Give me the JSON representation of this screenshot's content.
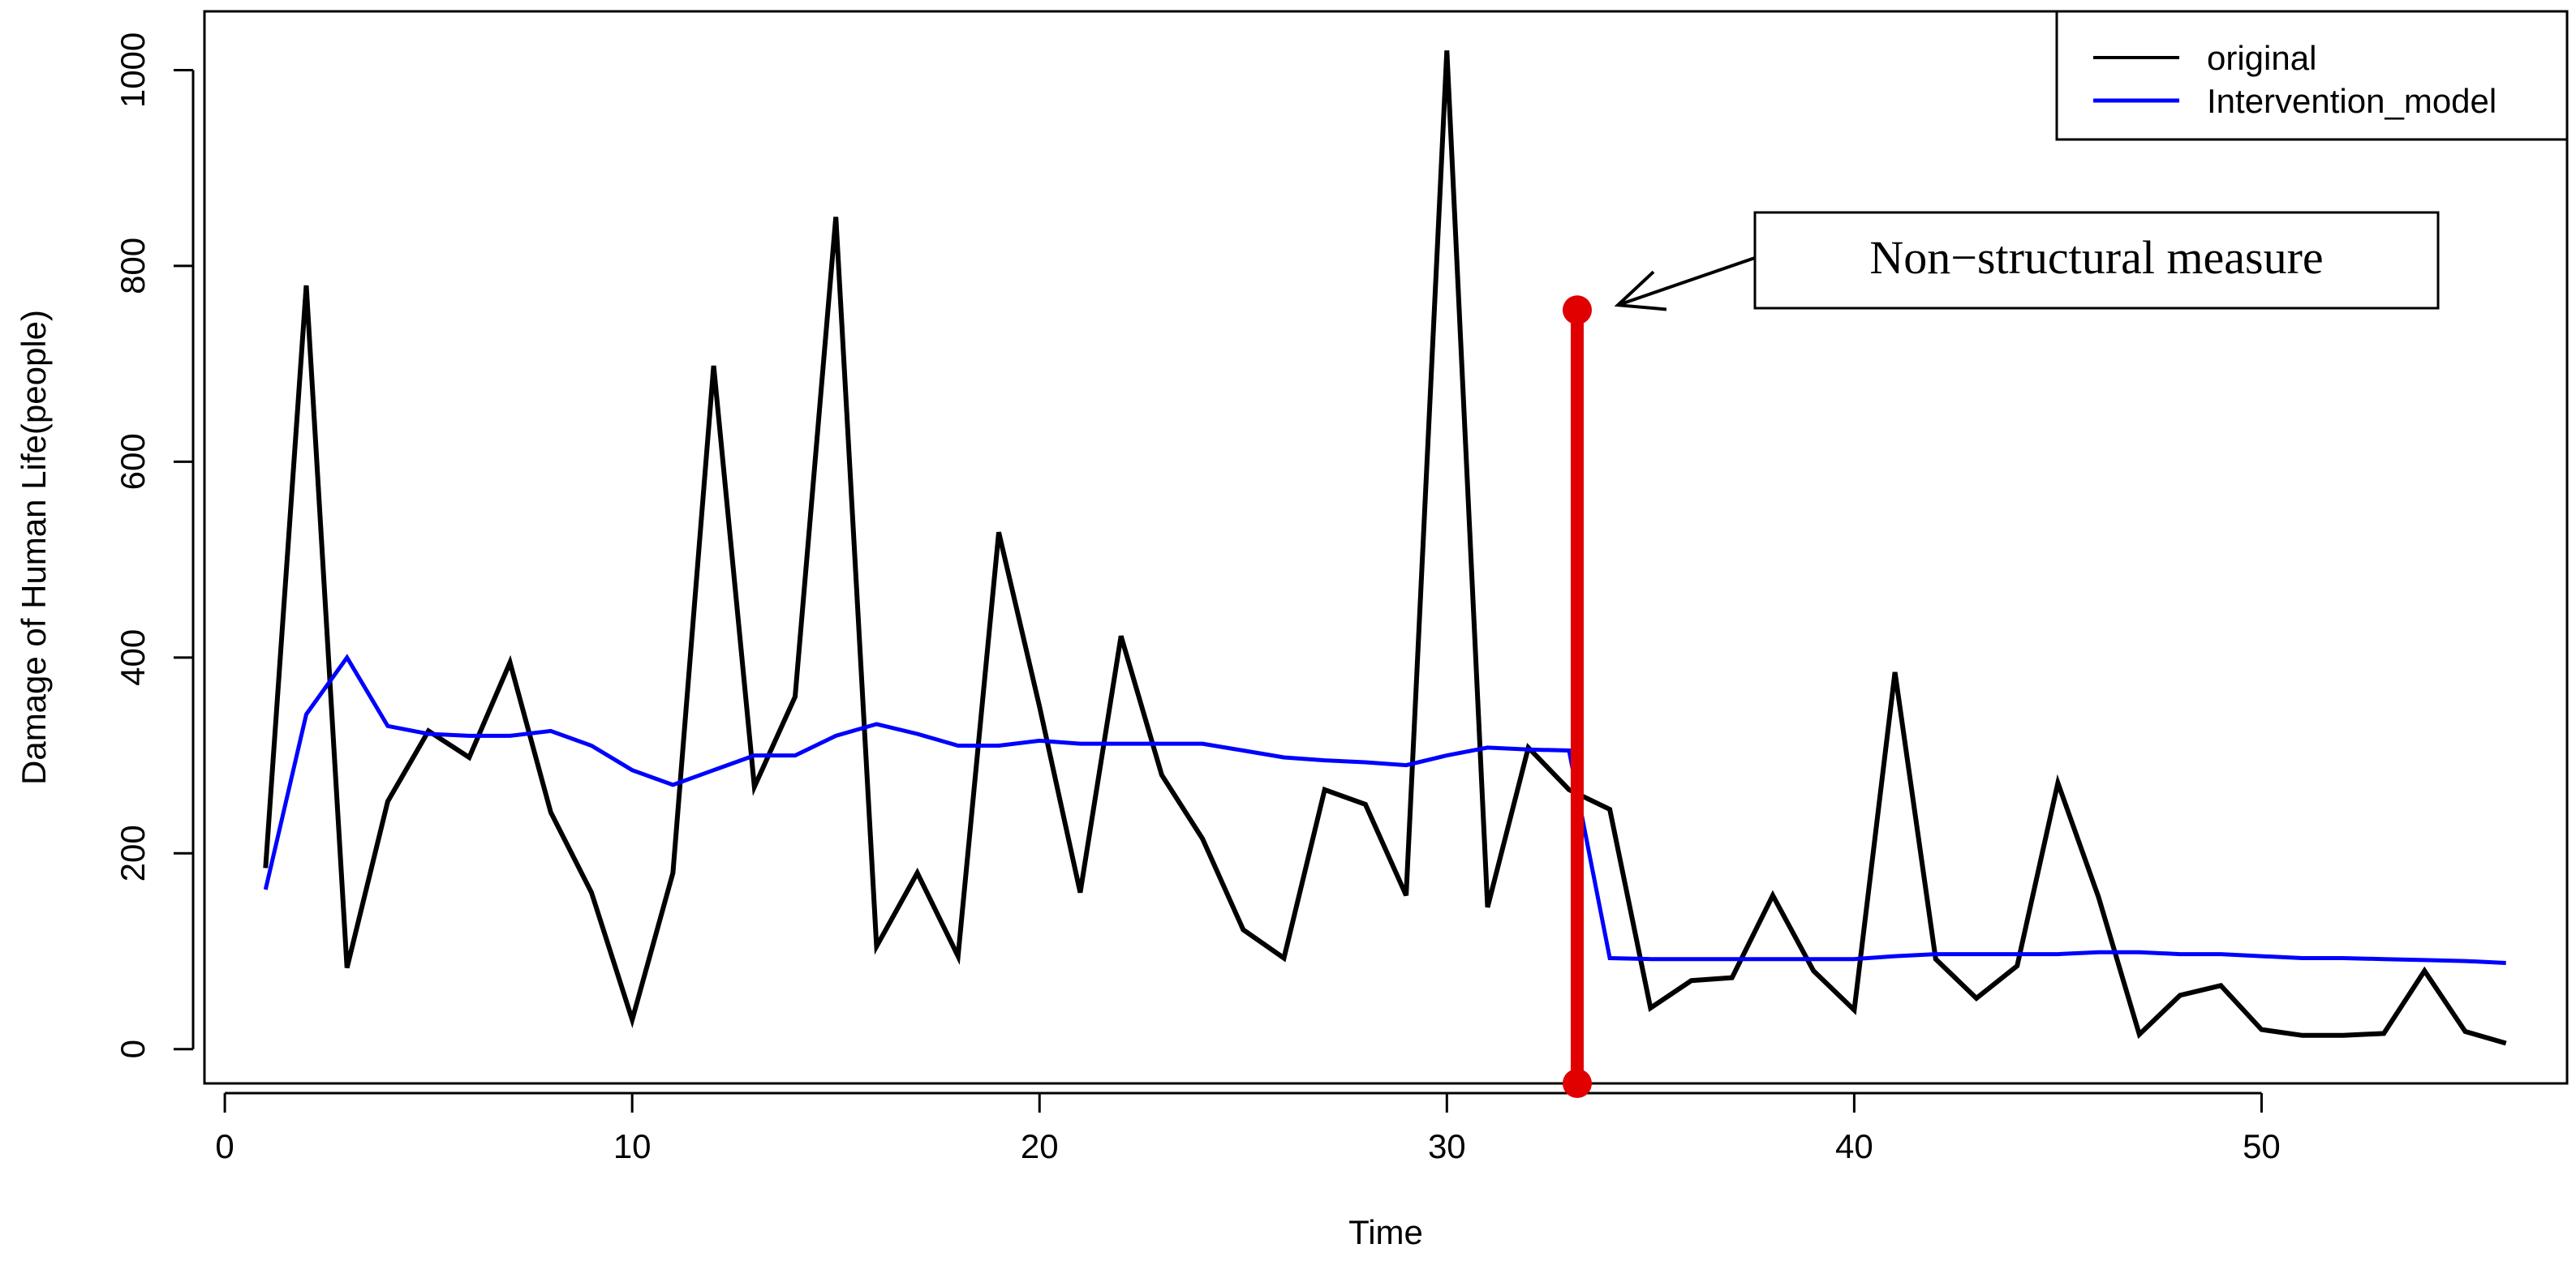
{
  "chart_data": {
    "type": "line",
    "title": "",
    "xlabel": "Time",
    "ylabel": "Damage of Human Life(people)",
    "xlim": [
      -0.5,
      57.5
    ],
    "ylim": [
      -35,
      1060
    ],
    "xticks": [
      0,
      10,
      20,
      30,
      40,
      50
    ],
    "yticks": [
      0,
      200,
      400,
      600,
      800,
      1000
    ],
    "grid": false,
    "legend": {
      "position": "top-right"
    },
    "series": [
      {
        "name": "original",
        "color": "#000000",
        "x": [
          1,
          2,
          3,
          4,
          5,
          6,
          7,
          8,
          9,
          10,
          11,
          12,
          13,
          14,
          15,
          16,
          17,
          18,
          19,
          20,
          21,
          22,
          23,
          24,
          25,
          26,
          27,
          28,
          29,
          30,
          31,
          32,
          33,
          34,
          35,
          36,
          37,
          38,
          39,
          40,
          41,
          42,
          43,
          44,
          45,
          46,
          47,
          48,
          49,
          50,
          51,
          52,
          53,
          54,
          55,
          56
        ],
        "values": [
          185,
          780,
          83,
          253,
          325,
          298,
          395,
          242,
          160,
          30,
          180,
          698,
          268,
          360,
          850,
          105,
          180,
          95,
          528,
          350,
          160,
          422,
          280,
          215,
          122,
          93,
          265,
          250,
          157,
          1020,
          145,
          308,
          265,
          245,
          42,
          70,
          73,
          157,
          80,
          40,
          385,
          92,
          52,
          85,
          272,
          155,
          15,
          55,
          65,
          20,
          14,
          14,
          16,
          80,
          18,
          6
        ]
      },
      {
        "name": "Intervention_model",
        "color": "#0000ff",
        "x": [
          1,
          2,
          3,
          4,
          5,
          6,
          7,
          8,
          9,
          10,
          11,
          12,
          13,
          14,
          15,
          16,
          17,
          18,
          19,
          20,
          21,
          22,
          23,
          24,
          25,
          26,
          27,
          28,
          29,
          30,
          31,
          32,
          33,
          34,
          35,
          36,
          37,
          38,
          39,
          40,
          41,
          42,
          43,
          44,
          45,
          46,
          47,
          48,
          49,
          50,
          51,
          52,
          53,
          54,
          55,
          56
        ],
        "values": [
          163,
          342,
          400,
          330,
          322,
          320,
          320,
          325,
          310,
          285,
          270,
          285,
          300,
          300,
          320,
          332,
          322,
          310,
          310,
          315,
          312,
          312,
          312,
          312,
          305,
          298,
          295,
          293,
          290,
          300,
          308,
          306,
          305,
          93,
          92,
          92,
          92,
          92,
          92,
          92,
          95,
          97,
          97,
          97,
          97,
          99,
          99,
          97,
          97,
          95,
          93,
          93,
          92,
          91,
          90,
          88
        ]
      }
    ],
    "intervention": {
      "x": 33.2,
      "y_top": 755,
      "y_bottom": -35,
      "color": "#e00000"
    },
    "annotation": {
      "text": "Non−structural measure",
      "arrow_to": [
        34.2,
        760
      ]
    }
  }
}
